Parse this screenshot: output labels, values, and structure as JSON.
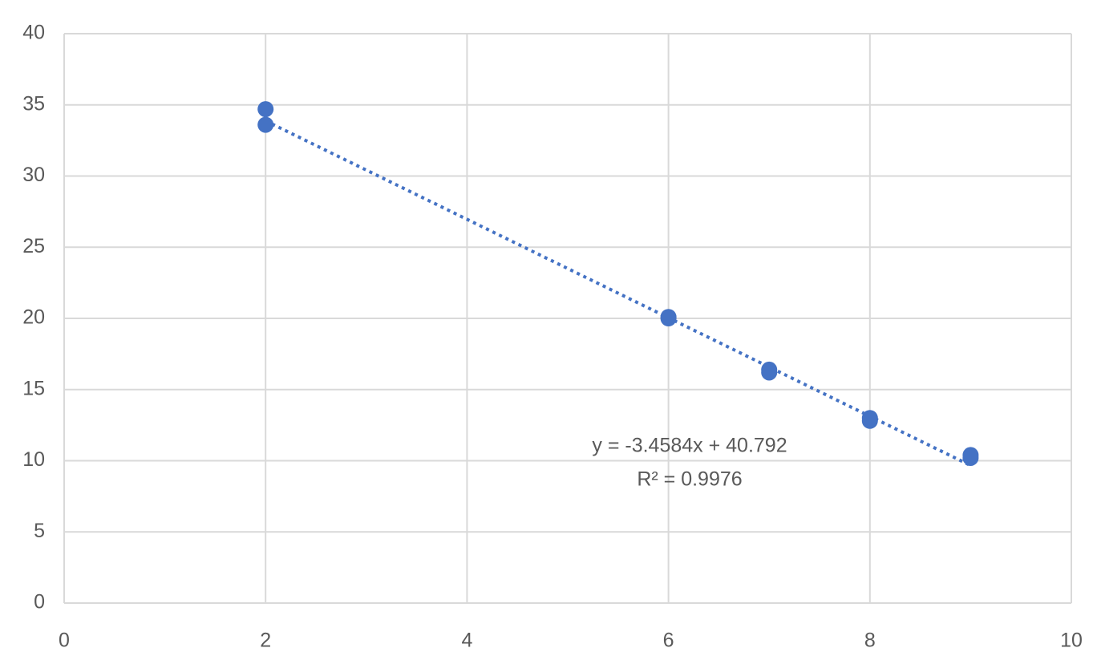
{
  "chart_data": {
    "type": "scatter",
    "x": [
      2,
      2,
      6,
      6,
      7,
      7,
      8,
      8,
      9,
      9
    ],
    "series": [
      {
        "color": "#4472c4",
        "values": [
          34.7,
          33.6,
          20.1,
          20.0,
          16.4,
          16.2,
          13.0,
          12.8,
          10.4,
          10.2
        ]
      }
    ],
    "trendline": {
      "slope": -3.4584,
      "intercept": 40.792,
      "style": "dotted",
      "equation": "y = -3.4584x + 40.792",
      "r_squared": "R² = 0.9976"
    },
    "xlim": [
      0,
      10
    ],
    "xticks": [
      0,
      2,
      4,
      6,
      8,
      10
    ],
    "ylim": [
      0,
      40
    ],
    "yticks": [
      0,
      5,
      10,
      15,
      20,
      25,
      30,
      35,
      40
    ],
    "grid": true
  }
}
